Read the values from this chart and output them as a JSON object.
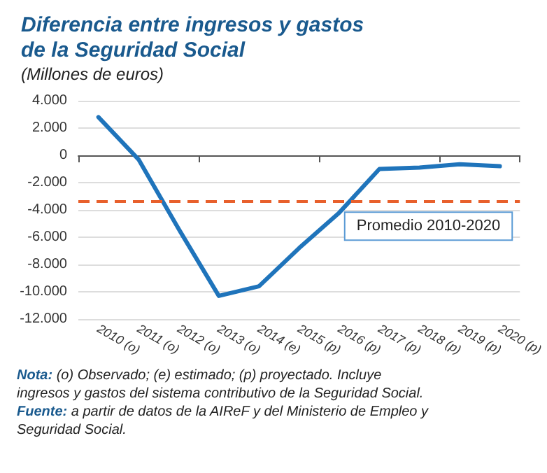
{
  "chart_data": {
    "type": "line",
    "title": "Diferencia entre ingresos y gastos\nde la Seguridad Social",
    "subtitle": "(Millones de euros)",
    "categories": [
      "2010 (o)",
      "2011 (o)",
      "2012 (o)",
      "2013 (o)",
      "2014 (e)",
      "2015 (p)",
      "2016 (p)",
      "2017 (p)",
      "2018 (p)",
      "2019 (p)",
      "2020 (p)"
    ],
    "series": [
      {
        "color": "#1f74bb",
        "values": [
          2800,
          -300,
          -5400,
          -10300,
          -9600,
          -6800,
          -4200,
          -1000,
          -900,
          -650,
          -800
        ]
      }
    ],
    "ylim": [
      -12000,
      4000
    ],
    "yticks": [
      {
        "value": -12000,
        "label": "-12.000"
      },
      {
        "value": -10000,
        "label": "-10.000"
      },
      {
        "value": -8000,
        "label": "-8.000"
      },
      {
        "value": -6000,
        "label": "-6.000"
      },
      {
        "value": -4000,
        "label": "-4.000"
      },
      {
        "value": -2000,
        "label": "-2.000"
      },
      {
        "value": 0,
        "label": "0"
      },
      {
        "value": 2000,
        "label": "2.000"
      },
      {
        "value": 4000,
        "label": "4.000"
      }
    ],
    "ref_lines": [
      {
        "axis": "y",
        "value": -3400,
        "label": "Promedio 2010-2020",
        "color": "#e8602c",
        "line_style": "dashed"
      }
    ],
    "grid": "y",
    "marker": "none",
    "line_style": "solid",
    "annotations": [
      "Nota: (o) Observado; (e) estimado; (p) proyectado. Incluye ingresos y gastos del sistema contributivo de la Seguridad Social.",
      "Fuente: a partir de datos de la AIReF y del Ministerio de Empleo y Seguridad Social."
    ]
  }
}
